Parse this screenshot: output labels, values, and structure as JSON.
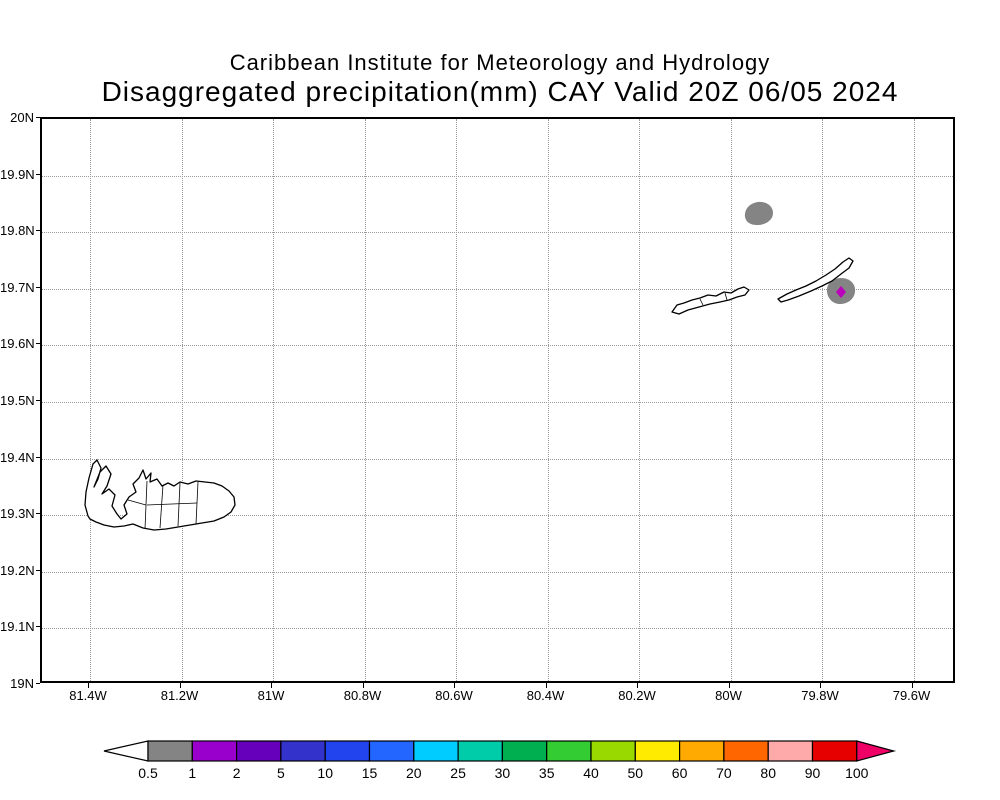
{
  "title": {
    "line1": "Caribbean Institute for Meteorology and Hydrology",
    "line2": "Disaggregated precipitation(mm) CAY Valid 20Z 06/05 2024"
  },
  "map": {
    "x_ticks": [
      "81.4W",
      "81.2W",
      "81W",
      "80.8W",
      "80.6W",
      "80.4W",
      "80.2W",
      "80W",
      "79.8W",
      "79.6W"
    ],
    "y_ticks": [
      "20N",
      "19.9N",
      "19.8N",
      "19.7N",
      "19.6N",
      "19.5N",
      "19.4N",
      "19.3N",
      "19.2N",
      "19.1N",
      "19N"
    ],
    "islands": [
      "grand-cayman",
      "little-cayman",
      "cayman-brac"
    ],
    "precip_features": [
      {
        "name": "precip-blob-north",
        "color": "#848484"
      },
      {
        "name": "precip-blob-east",
        "color": "#848484",
        "marker_color": "#bb00bb"
      }
    ]
  },
  "colorbar": {
    "labels": [
      "0.5",
      "1",
      "2",
      "5",
      "10",
      "15",
      "20",
      "25",
      "30",
      "35",
      "40",
      "50",
      "60",
      "70",
      "80",
      "90",
      "100"
    ],
    "segment_colors": [
      "#848484",
      "#9900cc",
      "#6600bb",
      "#3333cc",
      "#2244ee",
      "#2266ff",
      "#00ccff",
      "#00ccaa",
      "#00b050",
      "#33cc33",
      "#99d900",
      "#ffeb00",
      "#ffaa00",
      "#ff6600",
      "#ffaaaa",
      "#e60000"
    ],
    "left_arrow_color": "#ffffff",
    "right_arrow_color": "#ee0066",
    "outline_color": "#000000"
  }
}
